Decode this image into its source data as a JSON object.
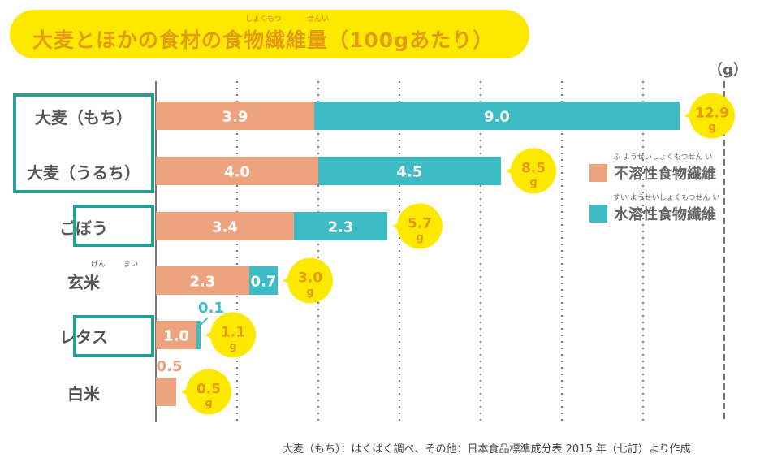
{
  "chart_data": {
    "type": "bar",
    "orientation": "horizontal",
    "stacked": true,
    "title": "大麦とほかの食材の食物繊維量（100gあたり）",
    "title_ruby": {
      "食物": "しょくもつ",
      "繊維": "せんい"
    },
    "unit": "（g）",
    "categories": [
      "大麦（もち）",
      "大麦（うるち）",
      "ごぼう",
      "玄米",
      "レタス",
      "白米"
    ],
    "category_ruby": {
      "玄米": [
        "げん",
        "まい"
      ]
    },
    "highlighted": [
      "大麦（もち）",
      "大麦（うるち）",
      "ごぼう",
      "レタス"
    ],
    "series": [
      {
        "name": "不溶性食物繊維",
        "ruby": "ふ ようせいしょくもつせん い",
        "color": "#eda47e",
        "values": [
          3.9,
          4.0,
          3.4,
          2.3,
          1.0,
          0.5
        ]
      },
      {
        "name": "水溶性食物繊維",
        "ruby": "すい ようせいしょくもつせん い",
        "color": "#3dbcc6",
        "values": [
          9.0,
          4.5,
          2.3,
          0.7,
          0.1,
          0
        ]
      }
    ],
    "segment_labels": [
      [
        "3.9",
        "9.0"
      ],
      [
        "4.0",
        "4.5"
      ],
      [
        "3.4",
        "2.3"
      ],
      [
        "2.3",
        "0.7"
      ],
      [
        "1.0",
        "0.1"
      ],
      [
        "0.5",
        ""
      ]
    ],
    "totals": [
      "12.9",
      "8.5",
      "5.7",
      "3.0",
      "1.1",
      "0.5"
    ],
    "total_unit": "g",
    "xlim": [
      0,
      14
    ],
    "grid": "dotted vertical every 2",
    "legend_placement": "right"
  },
  "colors": {
    "title_bg": "#fde800",
    "title_text": "#e39b12",
    "callout": "#fde800",
    "highlight_box": "#2a9d96"
  },
  "footer": "大麦（もち）：はくばく調べ、その他：日本食品標準成分表 2015 年（七訂）より作成"
}
